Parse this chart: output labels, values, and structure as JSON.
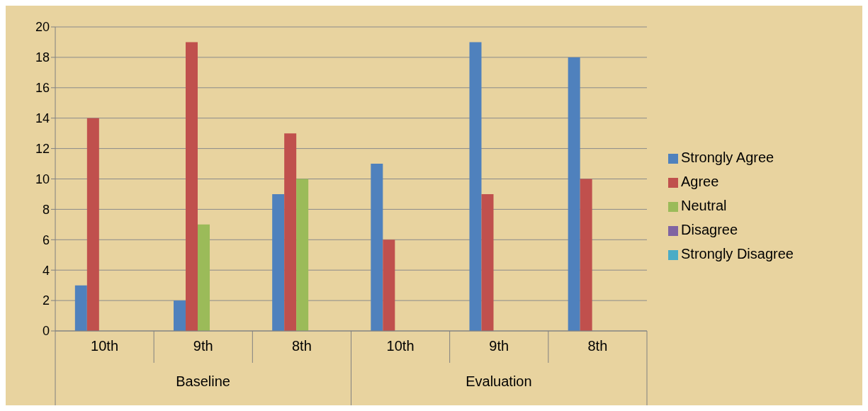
{
  "chart_data": {
    "type": "bar",
    "categories": [
      "10th",
      "9th",
      "8th",
      "10th",
      "9th",
      "8th"
    ],
    "annotations": [
      "Baseline",
      "Evaluation"
    ],
    "series": [
      {
        "name": "Strongly Agree",
        "color": "#4f81bd",
        "values": [
          3,
          2,
          9,
          11,
          19,
          18
        ]
      },
      {
        "name": "Agree",
        "color": "#c0504d",
        "values": [
          14,
          19,
          13,
          6,
          9,
          10
        ]
      },
      {
        "name": "Neutral",
        "color": "#9bbb59",
        "values": [
          0,
          7,
          10,
          0,
          0,
          0
        ]
      },
      {
        "name": "Disagree",
        "color": "#8064a2",
        "values": [
          0,
          0,
          0,
          0,
          0,
          0
        ]
      },
      {
        "name": "Strongly Disagree",
        "color": "#4bacc6",
        "values": [
          0,
          0,
          0,
          0,
          0,
          0
        ]
      }
    ],
    "ylim": [
      0,
      20
    ],
    "yticks": [
      0,
      2,
      4,
      6,
      8,
      10,
      12,
      14,
      16,
      18,
      20
    ],
    "grid": "y",
    "legend": "right"
  }
}
